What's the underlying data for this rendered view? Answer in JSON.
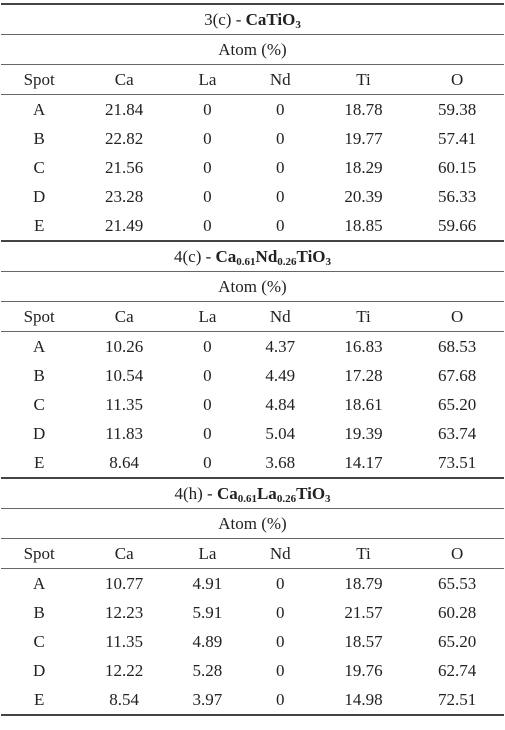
{
  "sections": [
    {
      "prefix": "3(c) - ",
      "formula": [
        {
          "t": "CaTiO"
        },
        {
          "t": "3",
          "sub": true
        }
      ],
      "subtitle": "Atom (%)",
      "header": [
        "Spot",
        "Ca",
        "La",
        "Nd",
        "Ti",
        "O"
      ],
      "rows": [
        [
          "A",
          "21.84",
          "0",
          "0",
          "18.78",
          "59.38"
        ],
        [
          "B",
          "22.82",
          "0",
          "0",
          "19.77",
          "57.41"
        ],
        [
          "C",
          "21.56",
          "0",
          "0",
          "18.29",
          "60.15"
        ],
        [
          "D",
          "23.28",
          "0",
          "0",
          "20.39",
          "56.33"
        ],
        [
          "E",
          "21.49",
          "0",
          "0",
          "18.85",
          "59.66"
        ]
      ]
    },
    {
      "prefix": "4(c) - ",
      "formula": [
        {
          "t": "Ca"
        },
        {
          "t": "0.61",
          "sub": true
        },
        {
          "t": "Nd"
        },
        {
          "t": "0.26",
          "sub": true
        },
        {
          "t": "TiO"
        },
        {
          "t": "3",
          "sub": true
        }
      ],
      "subtitle": "Atom (%)",
      "header": [
        "Spot",
        "Ca",
        "La",
        "Nd",
        "Ti",
        "O"
      ],
      "rows": [
        [
          "A",
          "10.26",
          "0",
          "4.37",
          "16.83",
          "68.53"
        ],
        [
          "B",
          "10.54",
          "0",
          "4.49",
          "17.28",
          "67.68"
        ],
        [
          "C",
          "11.35",
          "0",
          "4.84",
          "18.61",
          "65.20"
        ],
        [
          "D",
          "11.83",
          "0",
          "5.04",
          "19.39",
          "63.74"
        ],
        [
          "E",
          "8.64",
          "0",
          "3.68",
          "14.17",
          "73.51"
        ]
      ]
    },
    {
      "prefix": "4(h) - ",
      "formula": [
        {
          "t": "Ca"
        },
        {
          "t": "0.61",
          "sub": true
        },
        {
          "t": "La"
        },
        {
          "t": "0.26",
          "sub": true
        },
        {
          "t": "TiO"
        },
        {
          "t": "3",
          "sub": true
        }
      ],
      "subtitle": "Atom (%)",
      "header": [
        "Spot",
        "Ca",
        "La",
        "Nd",
        "Ti",
        "O"
      ],
      "rows": [
        [
          "A",
          "10.77",
          "4.91",
          "0",
          "18.79",
          "65.53"
        ],
        [
          "B",
          "12.23",
          "5.91",
          "0",
          "21.57",
          "60.28"
        ],
        [
          "C",
          "11.35",
          "4.89",
          "0",
          "18.57",
          "65.20"
        ],
        [
          "D",
          "12.22",
          "5.28",
          "0",
          "19.76",
          "62.74"
        ],
        [
          "E",
          "8.54",
          "3.97",
          "0",
          "14.98",
          "72.51"
        ]
      ]
    }
  ]
}
